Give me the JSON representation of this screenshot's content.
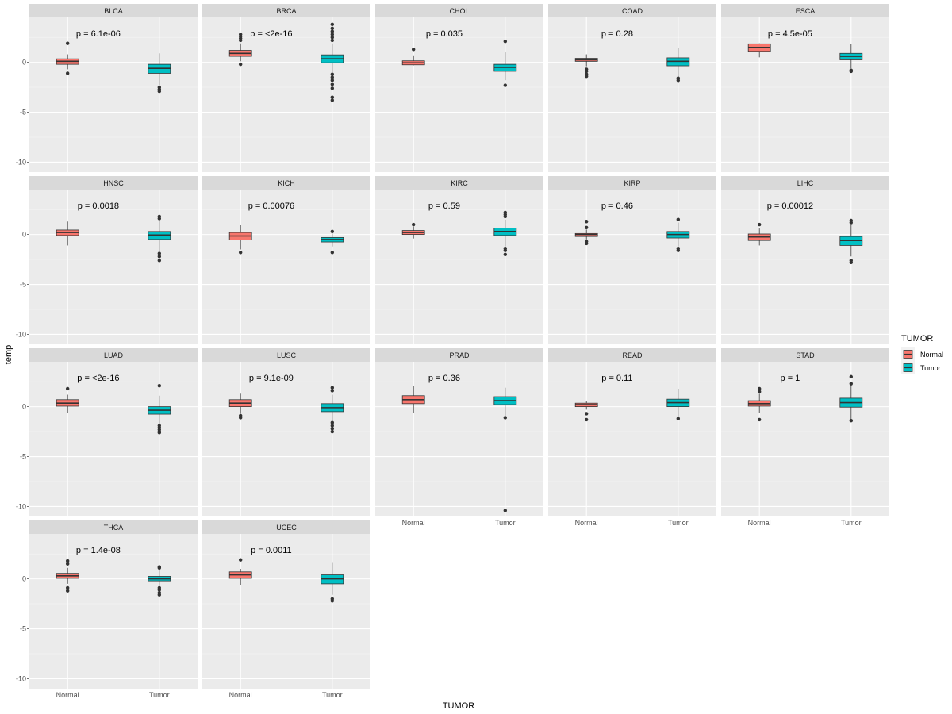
{
  "chart_data": {
    "type": "boxplot",
    "xlabel": "TUMOR",
    "ylabel": "temp",
    "ylim": [
      -11,
      4.5
    ],
    "yticks": [
      -10,
      -5,
      0
    ],
    "groups": [
      "Normal",
      "Tumor"
    ],
    "legend": {
      "title": "TUMOR",
      "position": "right",
      "entries": [
        {
          "label": "Normal",
          "color": "#F8766D"
        },
        {
          "label": "Tumor",
          "color": "#00BFC4"
        }
      ]
    },
    "panels": [
      {
        "name": "BLCA",
        "pval": "p = 6.1e-06",
        "boxes": [
          {
            "group": "Normal",
            "q1": -0.2,
            "median": 0.1,
            "q3": 0.35,
            "wlo": -0.7,
            "whi": 0.8,
            "outliers": [
              1.9,
              -1.1
            ]
          },
          {
            "group": "Tumor",
            "q1": -1.1,
            "median": -0.6,
            "q3": -0.2,
            "wlo": -2.3,
            "whi": 0.9,
            "outliers": [
              -2.5,
              -2.7,
              -2.9
            ]
          }
        ]
      },
      {
        "name": "BRCA",
        "pval": "p = <2e-16",
        "boxes": [
          {
            "group": "Normal",
            "q1": 0.6,
            "median": 0.9,
            "q3": 1.2,
            "wlo": 0.1,
            "whi": 1.9,
            "outliers": [
              2.2,
              2.4,
              2.6,
              2.8,
              -0.2
            ]
          },
          {
            "group": "Tumor",
            "q1": -0.05,
            "median": 0.35,
            "q3": 0.75,
            "wlo": -1.0,
            "whi": 1.9,
            "outliers": [
              2.2,
              2.5,
              2.8,
              3.1,
              3.4,
              3.8,
              -1.2,
              -1.5,
              -1.8,
              -2.2,
              -2.6,
              -3.5,
              -3.8
            ]
          }
        ]
      },
      {
        "name": "CHOL",
        "pval": "p = 0.035",
        "boxes": [
          {
            "group": "Normal",
            "q1": -0.25,
            "median": -0.05,
            "q3": 0.15,
            "wlo": -0.3,
            "whi": 0.7,
            "outliers": [
              1.3
            ]
          },
          {
            "group": "Tumor",
            "q1": -0.9,
            "median": -0.5,
            "q3": -0.2,
            "wlo": -1.8,
            "whi": 1.0,
            "outliers": [
              2.1,
              -2.3
            ]
          }
        ]
      },
      {
        "name": "COAD",
        "pval": "p = 0.28",
        "boxes": [
          {
            "group": "Normal",
            "q1": 0.1,
            "median": 0.25,
            "q3": 0.4,
            "wlo": -0.4,
            "whi": 0.8,
            "outliers": [
              -0.7,
              -0.9,
              -1.2,
              -1.4
            ]
          },
          {
            "group": "Tumor",
            "q1": -0.35,
            "median": 0.1,
            "q3": 0.45,
            "wlo": -1.5,
            "whi": 1.4,
            "outliers": [
              -1.6,
              -1.8
            ]
          }
        ]
      },
      {
        "name": "ESCA",
        "pval": "p = 4.5e-05",
        "boxes": [
          {
            "group": "Normal",
            "q1": 1.1,
            "median": 1.5,
            "q3": 1.85,
            "wlo": 0.5,
            "whi": 1.9,
            "outliers": []
          },
          {
            "group": "Tumor",
            "q1": 0.25,
            "median": 0.6,
            "q3": 0.9,
            "wlo": -0.6,
            "whi": 1.8,
            "outliers": [
              -0.8,
              -0.9
            ]
          }
        ]
      },
      {
        "name": "HNSC",
        "pval": "p = 0.0018",
        "boxes": [
          {
            "group": "Normal",
            "q1": -0.1,
            "median": 0.2,
            "q3": 0.45,
            "wlo": -1.1,
            "whi": 1.3,
            "outliers": []
          },
          {
            "group": "Tumor",
            "q1": -0.5,
            "median": -0.05,
            "q3": 0.3,
            "wlo": -1.7,
            "whi": 1.5,
            "outliers": [
              1.6,
              1.8,
              -1.9,
              -2.2,
              -2.6
            ]
          }
        ]
      },
      {
        "name": "KICH",
        "pval": "p = 0.00076",
        "boxes": [
          {
            "group": "Normal",
            "q1": -0.55,
            "median": -0.15,
            "q3": 0.2,
            "wlo": -1.5,
            "whi": 1.0,
            "outliers": [
              -1.8
            ]
          },
          {
            "group": "Tumor",
            "q1": -0.75,
            "median": -0.5,
            "q3": -0.3,
            "wlo": -1.2,
            "whi": 0.1,
            "outliers": [
              0.3,
              -1.8
            ]
          }
        ]
      },
      {
        "name": "KIRC",
        "pval": "p = 0.59",
        "boxes": [
          {
            "group": "Normal",
            "q1": 0.0,
            "median": 0.2,
            "q3": 0.4,
            "wlo": -0.4,
            "whi": 0.8,
            "outliers": [
              1.0
            ]
          },
          {
            "group": "Tumor",
            "q1": -0.1,
            "median": 0.3,
            "q3": 0.65,
            "wlo": -1.2,
            "whi": 1.5,
            "outliers": [
              1.8,
              2.0,
              2.2,
              -1.4,
              -1.6,
              -2.0
            ]
          }
        ]
      },
      {
        "name": "KIRP",
        "pval": "p = 0.46",
        "boxes": [
          {
            "group": "Normal",
            "q1": -0.2,
            "median": 0.0,
            "q3": 0.1,
            "wlo": -0.5,
            "whi": 0.5,
            "outliers": [
              0.7,
              1.3,
              -0.7,
              -0.9
            ]
          },
          {
            "group": "Tumor",
            "q1": -0.35,
            "median": 0.0,
            "q3": 0.3,
            "wlo": -1.2,
            "whi": 1.2,
            "outliers": [
              1.5,
              -1.4,
              -1.6
            ]
          }
        ]
      },
      {
        "name": "LIHC",
        "pval": "p = 0.00012",
        "boxes": [
          {
            "group": "Normal",
            "q1": -0.6,
            "median": -0.25,
            "q3": 0.05,
            "wlo": -1.1,
            "whi": 0.6,
            "outliers": [
              1.0
            ]
          },
          {
            "group": "Tumor",
            "q1": -1.1,
            "median": -0.6,
            "q3": -0.2,
            "wlo": -2.2,
            "whi": 1.0,
            "outliers": [
              1.2,
              1.4,
              -2.6,
              -2.8
            ]
          }
        ]
      },
      {
        "name": "LUAD",
        "pval": "p = <2e-16",
        "boxes": [
          {
            "group": "Normal",
            "q1": 0.05,
            "median": 0.35,
            "q3": 0.7,
            "wlo": -0.6,
            "whi": 1.2,
            "outliers": [
              1.8
            ]
          },
          {
            "group": "Tumor",
            "q1": -0.75,
            "median": -0.35,
            "q3": 0.0,
            "wlo": -1.8,
            "whi": 1.1,
            "outliers": [
              2.1,
              -1.9,
              -2.1,
              -2.3,
              -2.5,
              -2.6
            ]
          }
        ]
      },
      {
        "name": "LUSC",
        "pval": "p = 9.1e-09",
        "boxes": [
          {
            "group": "Normal",
            "q1": 0.0,
            "median": 0.35,
            "q3": 0.7,
            "wlo": -0.7,
            "whi": 1.3,
            "outliers": [
              -0.9,
              -1.1
            ]
          },
          {
            "group": "Tumor",
            "q1": -0.5,
            "median": -0.1,
            "q3": 0.3,
            "wlo": -1.4,
            "whi": 1.2,
            "outliers": [
              1.6,
              1.9,
              -1.6,
              -1.9,
              -2.2,
              -2.5
            ]
          }
        ]
      },
      {
        "name": "PRAD",
        "pval": "p = 0.36",
        "boxes": [
          {
            "group": "Normal",
            "q1": 0.3,
            "median": 0.7,
            "q3": 1.1,
            "wlo": -0.6,
            "whi": 2.1,
            "outliers": []
          },
          {
            "group": "Tumor",
            "q1": 0.2,
            "median": 0.6,
            "q3": 1.0,
            "wlo": -0.9,
            "whi": 1.9,
            "outliers": [
              -1.1,
              -10.4
            ]
          }
        ]
      },
      {
        "name": "READ",
        "pval": "p = 0.11",
        "boxes": [
          {
            "group": "Normal",
            "q1": 0.0,
            "median": 0.2,
            "q3": 0.35,
            "wlo": -0.3,
            "whi": 0.6,
            "outliers": [
              -0.7,
              -1.3
            ]
          },
          {
            "group": "Tumor",
            "q1": 0.0,
            "median": 0.4,
            "q3": 0.75,
            "wlo": -1.1,
            "whi": 1.8,
            "outliers": [
              -1.2
            ]
          }
        ]
      },
      {
        "name": "STAD",
        "pval": "p = 1",
        "boxes": [
          {
            "group": "Normal",
            "q1": 0.05,
            "median": 0.3,
            "q3": 0.6,
            "wlo": -0.6,
            "whi": 1.3,
            "outliers": [
              1.5,
              1.8,
              -1.3
            ]
          },
          {
            "group": "Tumor",
            "q1": -0.05,
            "median": 0.4,
            "q3": 0.85,
            "wlo": -1.3,
            "whi": 2.2,
            "outliers": [
              3.0,
              2.3,
              -1.4
            ]
          }
        ]
      },
      {
        "name": "THCA",
        "pval": "p = 1.4e-08",
        "boxes": [
          {
            "group": "Normal",
            "q1": 0.05,
            "median": 0.3,
            "q3": 0.55,
            "wlo": -0.5,
            "whi": 1.1,
            "outliers": [
              1.5,
              1.8,
              -0.9,
              -1.2
            ]
          },
          {
            "group": "Tumor",
            "q1": -0.2,
            "median": 0.0,
            "q3": 0.25,
            "wlo": -0.7,
            "whi": 0.9,
            "outliers": [
              1.1,
              1.2,
              -0.9,
              -1.1,
              -1.4,
              -1.6
            ]
          }
        ]
      },
      {
        "name": "UCEC",
        "pval": "p = 0.0011",
        "boxes": [
          {
            "group": "Normal",
            "q1": 0.05,
            "median": 0.4,
            "q3": 0.7,
            "wlo": -0.6,
            "whi": 1.0,
            "outliers": [
              1.9
            ]
          },
          {
            "group": "Tumor",
            "q1": -0.5,
            "median": 0.0,
            "q3": 0.4,
            "wlo": -1.6,
            "whi": 1.6,
            "outliers": [
              -2.0,
              -2.2
            ]
          }
        ]
      }
    ]
  }
}
